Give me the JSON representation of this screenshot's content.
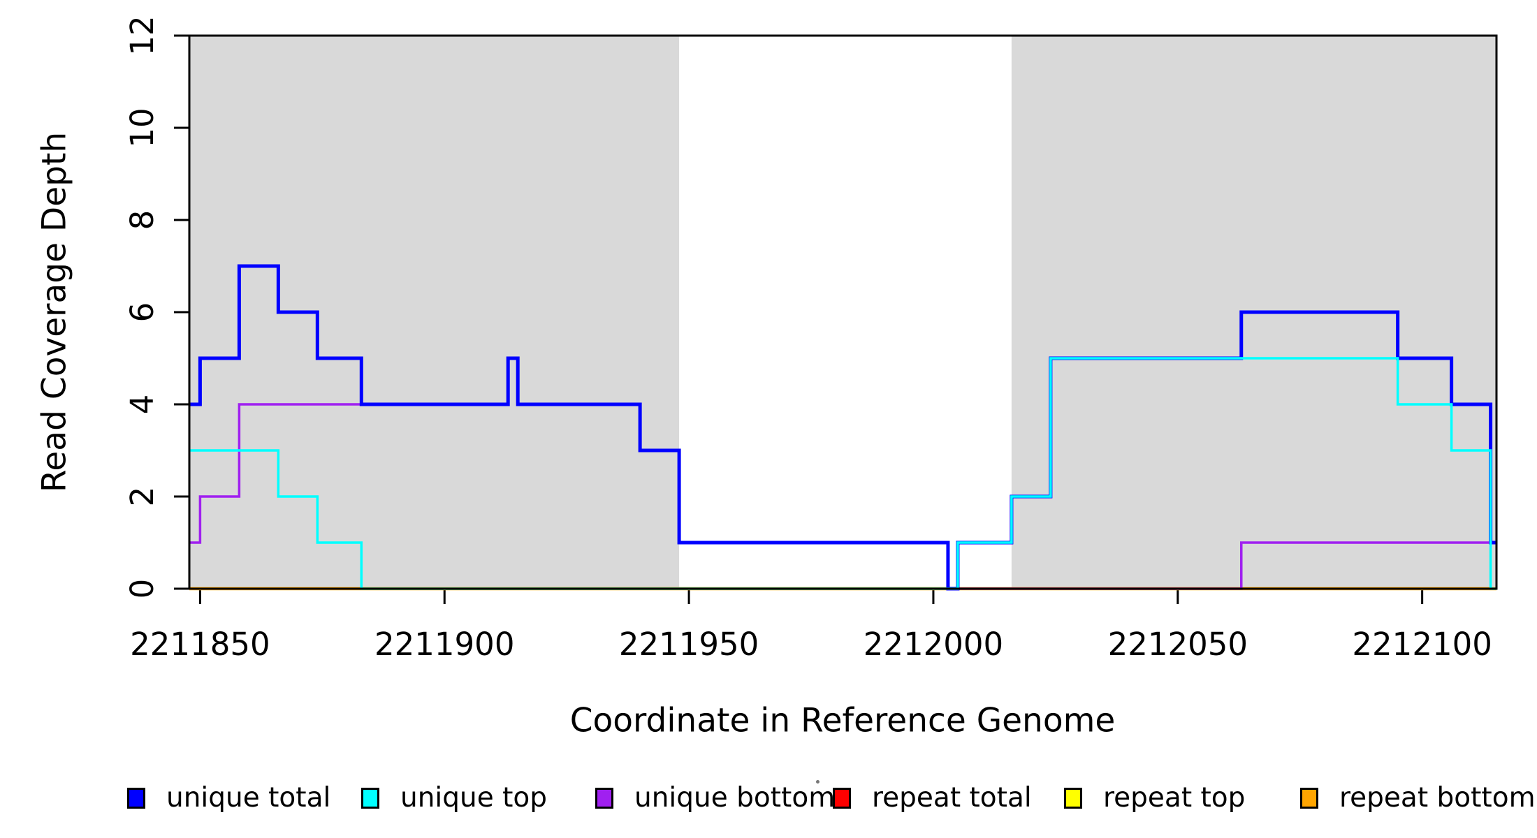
{
  "chart_data": {
    "type": "line",
    "title": "",
    "xlabel": "Coordinate in Reference Genome",
    "ylabel": "Read Coverage Depth",
    "xlim": [
      2211847.8,
      2212115.2
    ],
    "ylim": [
      0,
      12
    ],
    "x_ticks": [
      2211850,
      2211900,
      2211950,
      2212000,
      2212050,
      2212100
    ],
    "x_tick_labels": [
      "2211850",
      "2211900",
      "2211950",
      "2212000",
      "2212050",
      "2212100"
    ],
    "y_ticks": [
      0,
      2,
      4,
      6,
      8,
      10,
      12
    ],
    "y_tick_labels": [
      "0",
      "2",
      "4",
      "6",
      "8",
      "10",
      "12"
    ],
    "grid": false,
    "legend_position": "bottom",
    "step_mode": "after",
    "shading_color": "#d9d9d9",
    "shaded_regions": [
      {
        "x0": 2211847.8,
        "x1": 2211948
      },
      {
        "x0": 2212016,
        "x1": 2212115.2
      }
    ],
    "draw_order": [
      "repeat_total",
      "repeat_top",
      "repeat_bottom",
      "unique_bottom",
      "unique_total",
      "unique_top"
    ],
    "series": {
      "unique_total": {
        "name": "unique total",
        "color": "#0000ff",
        "line_width": 5,
        "points": [
          [
            2211847.8,
            4
          ],
          [
            2211850,
            5
          ],
          [
            2211858,
            7
          ],
          [
            2211866,
            6
          ],
          [
            2211874,
            5
          ],
          [
            2211883,
            4
          ],
          [
            2211913,
            5
          ],
          [
            2211915,
            4
          ],
          [
            2211940,
            3
          ],
          [
            2211948,
            1
          ],
          [
            2212003,
            0
          ],
          [
            2212005,
            1
          ],
          [
            2212016,
            2
          ],
          [
            2212024,
            5
          ],
          [
            2212063,
            6
          ],
          [
            2212095,
            5
          ],
          [
            2212106,
            4
          ],
          [
            2212114,
            1
          ],
          [
            2212115.2,
            1
          ]
        ]
      },
      "unique_top": {
        "name": "unique top",
        "color": "#00ffff",
        "line_width": 3.5,
        "points": [
          [
            2211847.8,
            3
          ],
          [
            2211866,
            2
          ],
          [
            2211874,
            1
          ],
          [
            2211883,
            0
          ],
          [
            2212005,
            1
          ],
          [
            2212016,
            2
          ],
          [
            2212024,
            5
          ],
          [
            2212095,
            4
          ],
          [
            2212106,
            3
          ],
          [
            2212114,
            0
          ],
          [
            2212115.2,
            0
          ]
        ]
      },
      "unique_bottom": {
        "name": "unique bottom",
        "color": "#a020f0",
        "line_width": 3.5,
        "points": [
          [
            2211847.8,
            1
          ],
          [
            2211850,
            2
          ],
          [
            2211858,
            4
          ],
          [
            2211913,
            5
          ],
          [
            2211915,
            4
          ],
          [
            2211940,
            3
          ],
          [
            2211948,
            1
          ],
          [
            2212003,
            0
          ],
          [
            2212063,
            1
          ],
          [
            2212115.2,
            1
          ]
        ]
      },
      "repeat_total": {
        "name": "repeat total",
        "color": "#ff0000",
        "line_width": 4,
        "points": [
          [
            2211847.8,
            0
          ],
          [
            2212115.2,
            0
          ]
        ]
      },
      "repeat_top": {
        "name": "repeat top",
        "color": "#ffff00",
        "line_width": 4,
        "points": [
          [
            2211847.8,
            0
          ],
          [
            2212115.2,
            0
          ]
        ]
      },
      "repeat_bottom": {
        "name": "repeat bottom",
        "color": "#ffa500",
        "line_width": 4.5,
        "points": [
          [
            2211847.8,
            0
          ],
          [
            2212115.2,
            0
          ]
        ]
      }
    },
    "legend": [
      {
        "series": "unique_total",
        "label": "unique total",
        "color": "#0000ff"
      },
      {
        "series": "unique_top",
        "label": "unique top",
        "color": "#00ffff"
      },
      {
        "series": "unique_bottom",
        "label": "unique bottom",
        "color": "#a020f0"
      },
      {
        "series": "repeat_total",
        "label": "repeat total",
        "color": "#ff0000"
      },
      {
        "series": "repeat_top",
        "label": "repeat top",
        "color": "#ffff00"
      },
      {
        "series": "repeat_bottom",
        "label": "repeat bottom",
        "color": "#ffa500"
      }
    ]
  }
}
